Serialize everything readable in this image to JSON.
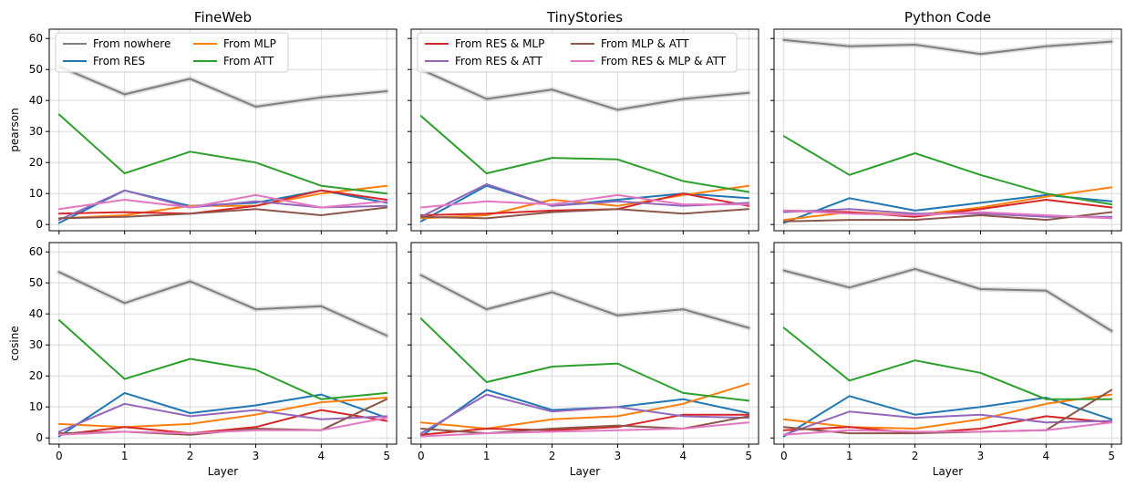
{
  "chart_data": {
    "type": "line",
    "x": [
      0,
      1,
      2,
      3,
      4,
      5
    ],
    "xlabel": "Layer",
    "xlim": [
      -0.15,
      5.15
    ],
    "ylim": [
      -2,
      63
    ],
    "yticks": [
      0,
      10,
      20,
      30,
      40,
      50,
      60
    ],
    "grid": true,
    "series_styles": [
      {
        "name": "From nowhere",
        "color": "#7f7f7f"
      },
      {
        "name": "From RES",
        "color": "#1f77b4"
      },
      {
        "name": "From MLP",
        "color": "#ff7f0e"
      },
      {
        "name": "From ATT",
        "color": "#2ca02c"
      },
      {
        "name": "From RES & MLP",
        "color": "#d62728"
      },
      {
        "name": "From RES & ATT",
        "color": "#9467bd"
      },
      {
        "name": "From MLP & ATT",
        "color": "#8c564b"
      },
      {
        "name": "From RES & MLP & ATT",
        "color": "#e377c2"
      }
    ],
    "columns": [
      "FineWeb",
      "TinyStories",
      "Python Code"
    ],
    "rows": [
      "pearson",
      "cosine"
    ],
    "legends": [
      {
        "panel": 0,
        "placement": "top-left",
        "entries": [
          "From nowhere",
          "From RES",
          "From MLP",
          "From ATT"
        ]
      },
      {
        "panel": 1,
        "placement": "top-left",
        "entries": [
          "From RES & MLP",
          "From RES & ATT",
          "From MLP & ATT",
          "From RES & MLP & ATT"
        ]
      }
    ],
    "panels": [
      {
        "title": "FineWeb",
        "ylabel": "pearson",
        "series": {
          "From nowhere": [
            51,
            42,
            47,
            38,
            41,
            43
          ],
          "From RES": [
            0.5,
            11,
            6,
            7,
            11,
            7
          ],
          "From MLP": [
            2,
            3,
            6,
            6,
            10,
            12.5
          ],
          "From ATT": [
            35.5,
            16.5,
            23.5,
            20,
            12.5,
            10
          ],
          "From RES & MLP": [
            3.5,
            4,
            3.5,
            6,
            11,
            8
          ],
          "From RES & ATT": [
            1.5,
            11,
            5.5,
            7.5,
            5.5,
            6
          ],
          "From MLP & ATT": [
            2,
            2.5,
            3.5,
            5,
            3,
            5.5
          ],
          "From RES & MLP & ATT": [
            5,
            8,
            5.5,
            9.5,
            5.5,
            7.5
          ]
        }
      },
      {
        "title": "TinyStories",
        "ylabel": "",
        "series": {
          "From nowhere": [
            50,
            40.5,
            43.5,
            37,
            40.5,
            42.5
          ],
          "From RES": [
            1,
            12.5,
            6,
            8,
            10,
            8.5
          ],
          "From MLP": [
            2,
            3,
            8,
            6,
            9.5,
            12.5
          ],
          "From ATT": [
            35,
            16.5,
            21.5,
            21,
            14,
            10.5
          ],
          "From RES & MLP": [
            3,
            3.5,
            4.5,
            5,
            10,
            6
          ],
          "From RES & ATT": [
            2.5,
            13,
            6,
            7.5,
            6,
            7
          ],
          "From MLP & ATT": [
            2.5,
            2,
            4,
            5,
            3.5,
            5
          ],
          "From RES & MLP & ATT": [
            5.5,
            7.5,
            6.5,
            9.5,
            6.5,
            6.5
          ]
        }
      },
      {
        "title": "Python Code",
        "ylabel": "",
        "series": {
          "From nowhere": [
            59.5,
            57.5,
            58,
            55,
            57.5,
            59
          ],
          "From RES": [
            0.5,
            8.5,
            4.5,
            7,
            9.5,
            7.5
          ],
          "From MLP": [
            1.5,
            4,
            3,
            5.5,
            9,
            12
          ],
          "From ATT": [
            28.5,
            16,
            23,
            16,
            10,
            6.5
          ],
          "From RES & MLP": [
            4.5,
            4,
            2.5,
            5,
            8,
            5.5
          ],
          "From RES & ATT": [
            4,
            5,
            3.5,
            3.5,
            2.5,
            2.5
          ],
          "From MLP & ATT": [
            1,
            1.5,
            1.5,
            3,
            1.5,
            4
          ],
          "From RES & MLP & ATT": [
            4.5,
            3.5,
            3,
            4,
            3,
            2
          ]
        }
      },
      {
        "title": "",
        "ylabel": "cosine",
        "series": {
          "From nowhere": [
            53.5,
            43.5,
            50.5,
            41.5,
            42.5,
            33
          ],
          "From RES": [
            0.5,
            14.5,
            8,
            10.5,
            14,
            6.5
          ],
          "From MLP": [
            4.5,
            3.5,
            4.5,
            7.5,
            11.5,
            13
          ],
          "From ATT": [
            38,
            19,
            25.5,
            22,
            12.5,
            14.5
          ],
          "From RES & MLP": [
            1,
            3.5,
            1.5,
            3.5,
            9,
            5.5
          ],
          "From RES & ATT": [
            2,
            11,
            7,
            9,
            6,
            7
          ],
          "From MLP & ATT": [
            1.5,
            2,
            1,
            3,
            2.5,
            12.5
          ],
          "From RES & MLP & ATT": [
            1,
            2,
            1.5,
            2.5,
            2.5,
            6.5
          ]
        }
      },
      {
        "title": "",
        "ylabel": "",
        "series": {
          "From nowhere": [
            52.5,
            41.5,
            47,
            39.5,
            41.5,
            35.5
          ],
          "From RES": [
            0.5,
            15.5,
            9,
            10,
            12.5,
            8
          ],
          "From MLP": [
            5,
            3,
            6,
            7,
            11,
            17.5
          ],
          "From ATT": [
            38.5,
            18,
            23,
            24,
            14.5,
            12
          ],
          "From RES & MLP": [
            1,
            3,
            2.5,
            3.5,
            7.5,
            7.5
          ],
          "From RES & ATT": [
            1.5,
            14,
            8.5,
            10,
            7,
            6.5
          ],
          "From MLP & ATT": [
            3,
            1.5,
            3,
            4,
            3,
            7
          ],
          "From RES & MLP & ATT": [
            0.5,
            1.5,
            2,
            2.5,
            3,
            5
          ]
        }
      },
      {
        "title": "",
        "ylabel": "",
        "series": {
          "From nowhere": [
            54,
            48.5,
            54.5,
            48,
            47.5,
            34.5
          ],
          "From RES": [
            0.5,
            13.5,
            7.5,
            10,
            13,
            6
          ],
          "From MLP": [
            6,
            3.5,
            3,
            6,
            11,
            14
          ],
          "From ATT": [
            35.5,
            18.5,
            25,
            21,
            12.5,
            12.5
          ],
          "From RES & MLP": [
            2.5,
            3.5,
            1.5,
            3,
            7,
            5
          ],
          "From RES & ATT": [
            1,
            8.5,
            6.5,
            7.5,
            5,
            5.5
          ],
          "From MLP & ATT": [
            3.5,
            1.5,
            1.5,
            2,
            2.5,
            15.5
          ],
          "From RES & MLP & ATT": [
            1,
            2.5,
            2,
            2,
            2.5,
            5
          ]
        }
      }
    ]
  }
}
